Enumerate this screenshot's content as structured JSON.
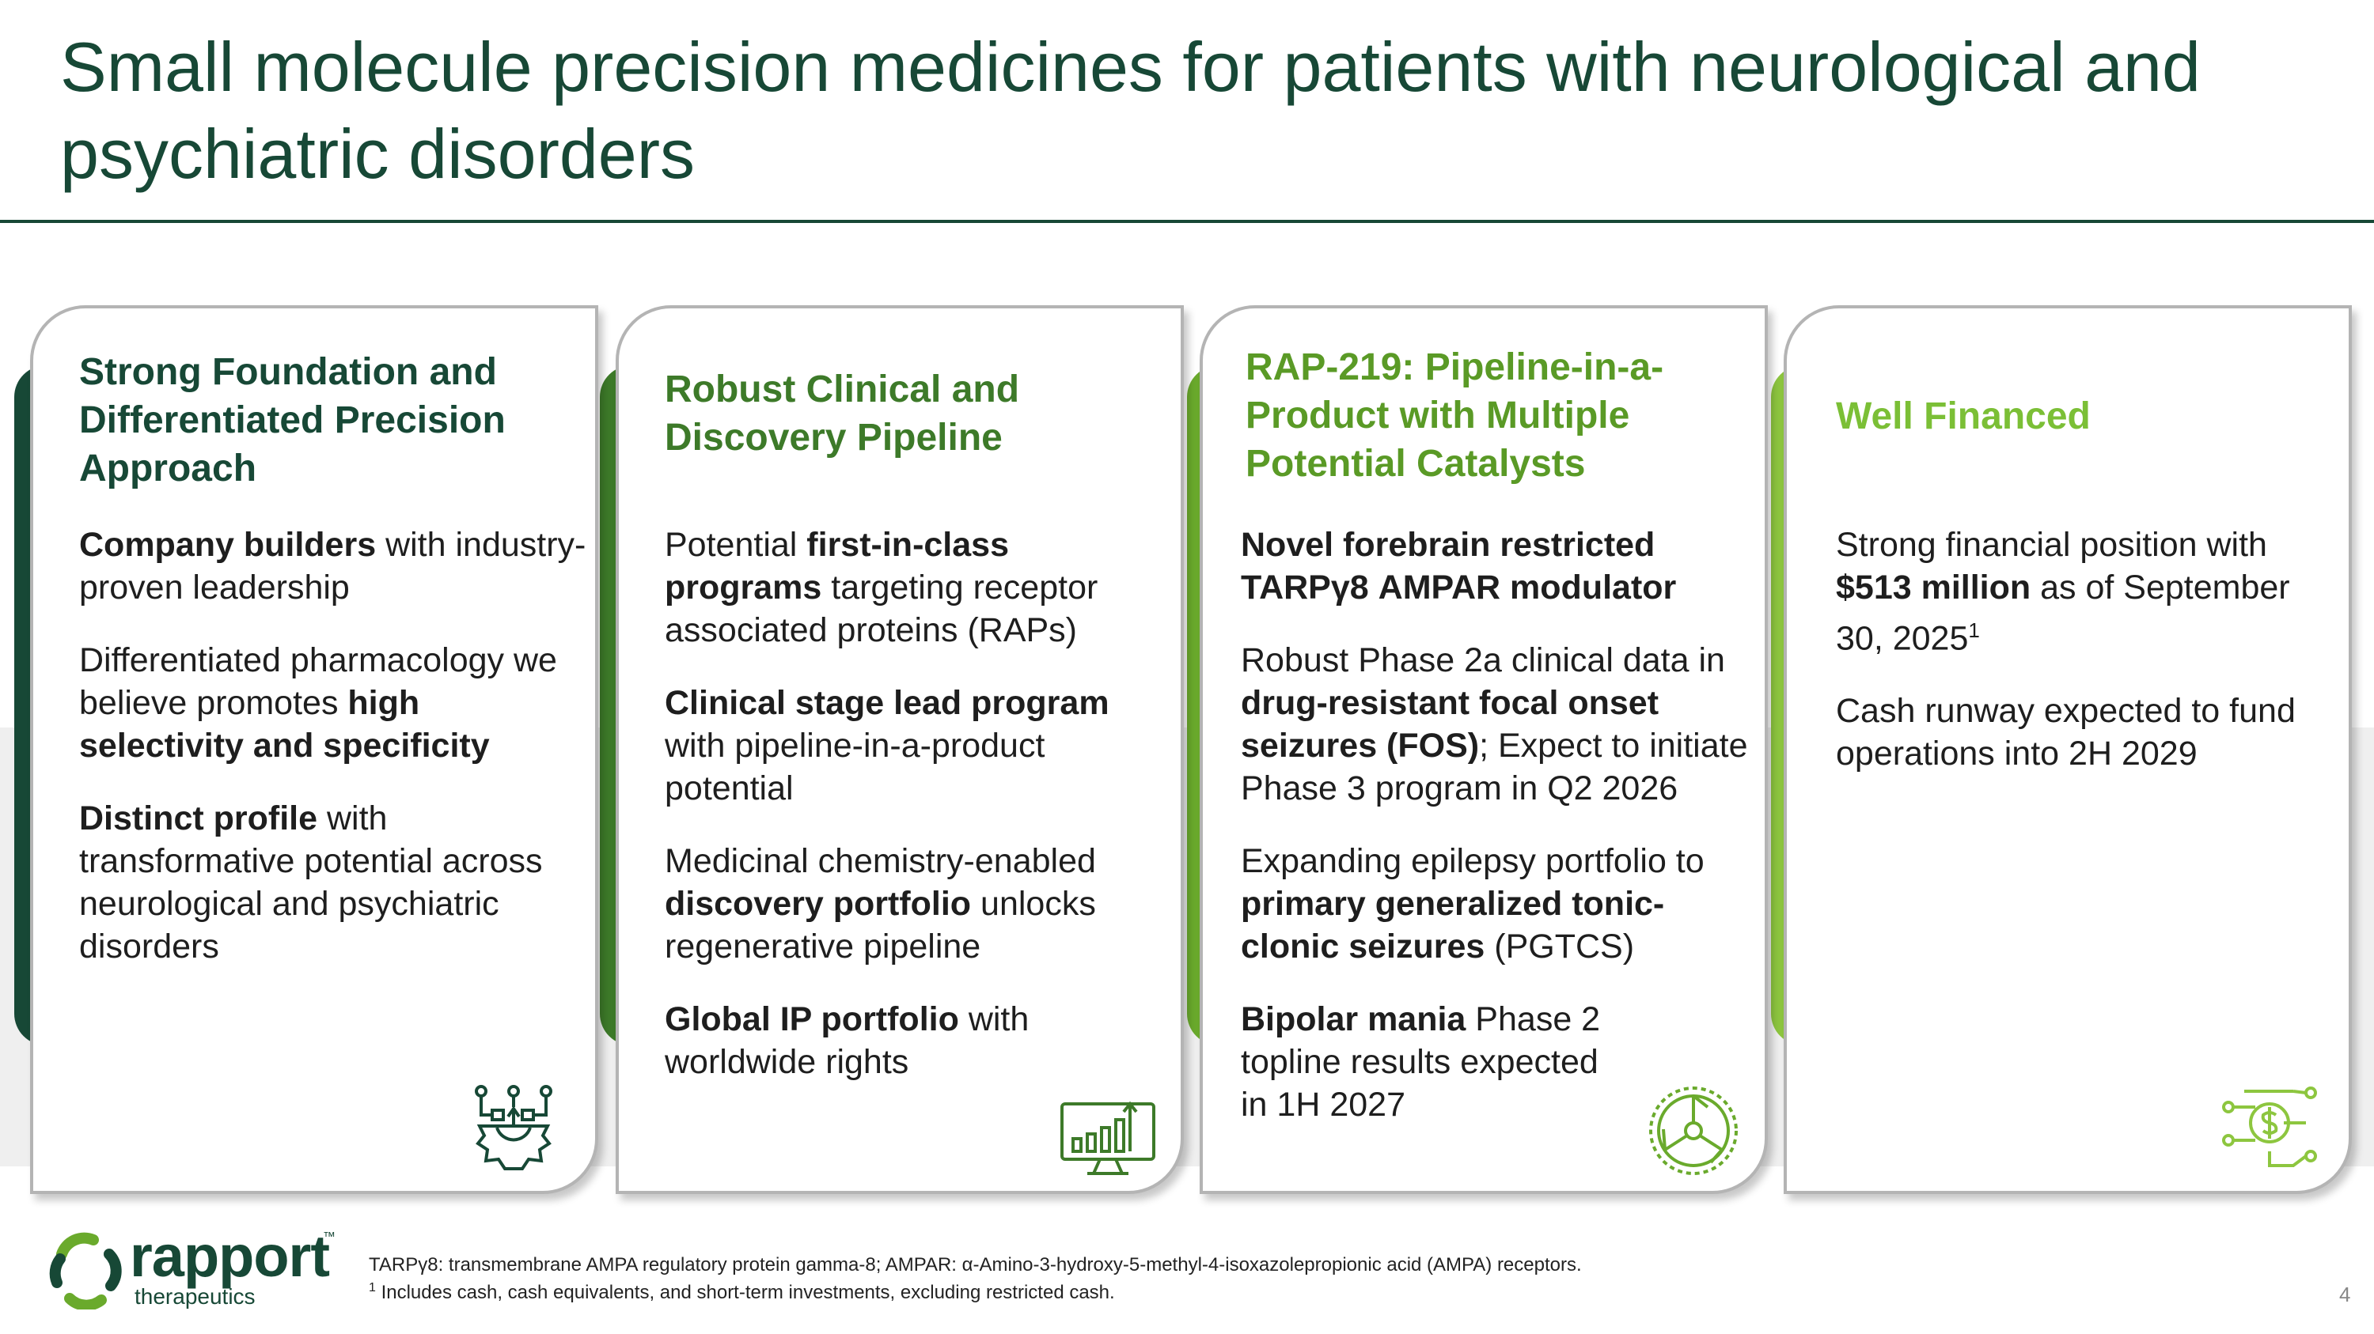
{
  "title": "Small molecule precision medicines for patients with neurological and psychiatric disorders",
  "colors": {
    "dark_green": "#174836",
    "mid_green": "#3d7a29",
    "light_green": "#6aaa2c",
    "lime": "#8dc63f"
  },
  "cards": [
    {
      "title": "Strong Foundation and Differentiated Precision Approach",
      "icon": "gear-network-icon",
      "p1": {
        "b1": "Company builders",
        "t1": " with industry-proven leadership"
      },
      "p2": {
        "t1": "Differentiated pharmacology we believe promotes ",
        "b1": "high selectivity and specificity"
      },
      "p3": {
        "b1": "Distinct profile",
        "t1": " with transformative potential across neurological and psychiatric disorders"
      }
    },
    {
      "title": "Robust Clinical and Discovery Pipeline",
      "icon": "growth-chart-monitor-icon",
      "p1": {
        "t1": "Potential ",
        "b1": "first-in-class programs",
        "t2": " targeting receptor associated proteins (RAPs)"
      },
      "p2": {
        "b1": "Clinical stage lead program",
        "t1": " with pipeline-in-a-product potential"
      },
      "p3": {
        "t1": "Medicinal chemistry-enabled ",
        "b1": "discovery portfolio",
        "t2": " unlocks regenerative pipeline"
      },
      "p4": {
        "b1": "Global IP portfolio",
        "t1": " with worldwide rights"
      }
    },
    {
      "title": "RAP-219: Pipeline-in-a-Product with Multiple Potential Catalysts",
      "icon": "target-dial-icon",
      "p1": {
        "b1": "Novel forebrain restricted TARPγ8 AMPAR modulator"
      },
      "p2": {
        "t1": "Robust Phase 2a clinical data in ",
        "b1": "drug-resistant focal onset seizures (FOS)",
        "t2": "; Expect to initiate Phase 3 program in Q2 2026"
      },
      "p3": {
        "t1": "Expanding epilepsy portfolio to ",
        "b1": "primary generalized tonic-clonic seizures",
        "t2": " (PGTCS)"
      },
      "p4": {
        "b1": "Bipolar mania",
        "t1": " Phase 2 topline results expected in 1H 2027"
      }
    },
    {
      "title": "Well Financed",
      "icon": "dollar-circuit-icon",
      "p1": {
        "t1": "Strong financial position with ",
        "b1": "$513 million",
        "t2": " as of September 30, 2025",
        "sup": "1"
      },
      "p2": {
        "t1": "Cash runway expected to fund operations into 2H 2029"
      }
    }
  ],
  "logo": {
    "name": "rapport",
    "tm": "™",
    "sub": "therapeutics"
  },
  "footnotes": {
    "line1": "TARPγ8: transmembrane AMPA regulatory protein gamma-8; AMPAR: α-Amino-3-hydroxy-5-methyl-4-isoxazolepropionic acid (AMPA) receptors.",
    "line2_sup": "1",
    "line2": " Includes cash, cash equivalents, and short-term investments, excluding restricted cash."
  },
  "page_number": "4"
}
